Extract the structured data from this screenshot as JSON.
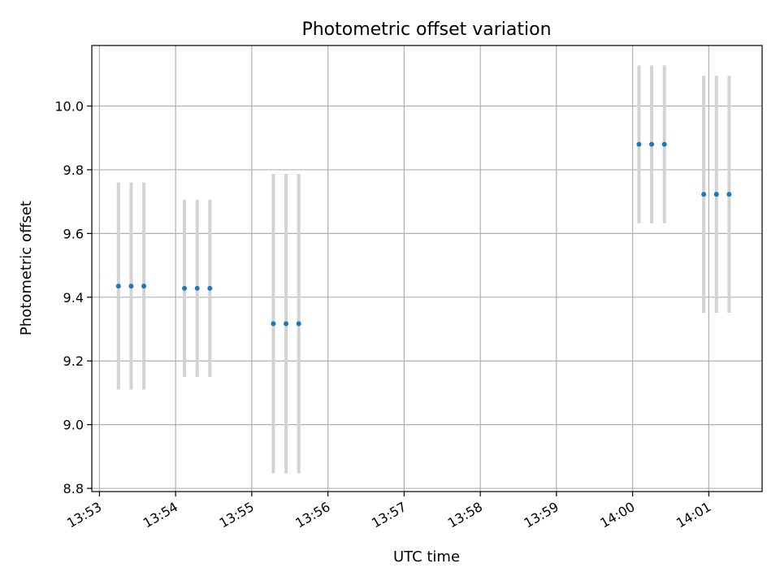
{
  "chart_data": {
    "type": "scatter",
    "title": "Photometric offset variation",
    "xlabel": "UTC time",
    "ylabel": "Photometric offset",
    "grid": true,
    "legend": "none",
    "xlim": [
      "13:52:54",
      "14:01:42"
    ],
    "ylim": [
      8.79,
      10.19
    ],
    "x_ticks": [
      "13:53",
      "13:54",
      "13:55",
      "13:56",
      "13:57",
      "13:58",
      "13:59",
      "14:00",
      "14:01"
    ],
    "y_ticks": [
      "8.8",
      "9.0",
      "9.2",
      "9.4",
      "9.6",
      "9.8",
      "10.0"
    ],
    "colors": {
      "points": "#1f77b4",
      "errorbars": "#d3d3d3",
      "grid": "#b0b0b0"
    },
    "points": [
      {
        "x": "13:53:15",
        "y": 9.435,
        "yerr": 0.325
      },
      {
        "x": "13:53:25",
        "y": 9.435,
        "yerr": 0.325
      },
      {
        "x": "13:53:35",
        "y": 9.435,
        "yerr": 0.325
      },
      {
        "x": "13:54:07",
        "y": 9.428,
        "yerr": 0.278
      },
      {
        "x": "13:54:17",
        "y": 9.428,
        "yerr": 0.278
      },
      {
        "x": "13:54:27",
        "y": 9.428,
        "yerr": 0.278
      },
      {
        "x": "13:55:17",
        "y": 9.317,
        "yerr": 0.47
      },
      {
        "x": "13:55:27",
        "y": 9.317,
        "yerr": 0.47
      },
      {
        "x": "13:55:37",
        "y": 9.317,
        "yerr": 0.47
      },
      {
        "x": "14:00:05",
        "y": 9.88,
        "yerr": 0.248
      },
      {
        "x": "14:00:15",
        "y": 9.88,
        "yerr": 0.248
      },
      {
        "x": "14:00:25",
        "y": 9.88,
        "yerr": 0.248
      },
      {
        "x": "14:00:56",
        "y": 9.723,
        "yerr": 0.372
      },
      {
        "x": "14:01:06",
        "y": 9.723,
        "yerr": 0.372
      },
      {
        "x": "14:01:16",
        "y": 9.723,
        "yerr": 0.372
      }
    ]
  }
}
